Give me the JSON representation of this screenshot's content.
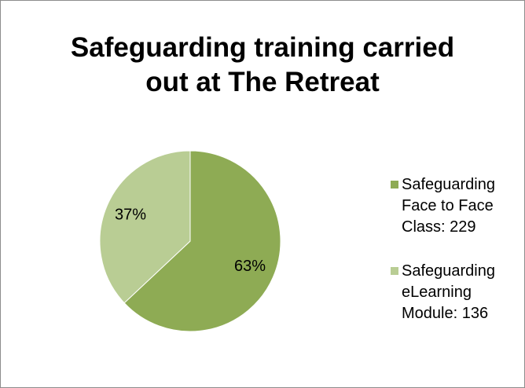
{
  "chart_data": {
    "type": "pie",
    "title": "Safeguarding training carried out at The Retreat",
    "categories": [
      "Safeguarding Face to Face Class: 229",
      "Safeguarding eLearning Module: 136"
    ],
    "values": [
      63,
      37
    ],
    "value_labels": [
      "63%",
      "37%"
    ],
    "colors": [
      "#8eab54",
      "#b9cd94"
    ],
    "legend": "right"
  }
}
